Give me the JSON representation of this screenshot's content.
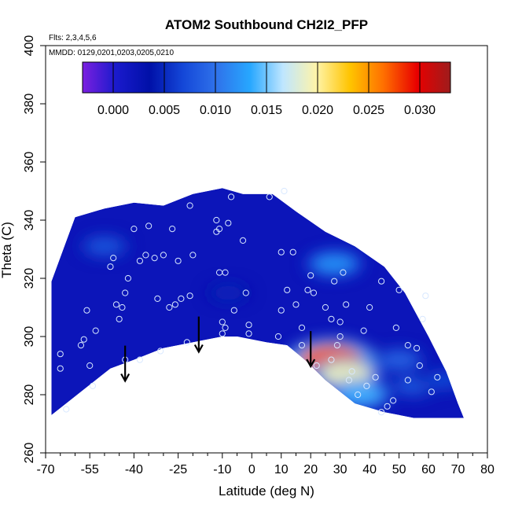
{
  "chart_data": {
    "type": "heatmap",
    "title": "ATOM2 Southbound CH2I2_PFP",
    "annotations": [
      "Flts: 2,3,4,5,6",
      "MMDD: 0129,0201,0203,0205,0210"
    ],
    "xlabel": "Latitude (deg N)",
    "ylabel": "Theta (C)",
    "xlim": [
      -70,
      80
    ],
    "ylim": [
      260,
      400
    ],
    "x_ticks": [
      -70,
      -55,
      -40,
      -25,
      -10,
      0,
      10,
      20,
      30,
      40,
      50,
      60,
      70,
      80
    ],
    "x_tick_labels": [
      "-70",
      "-55",
      "-40",
      "-25",
      "-10",
      "0",
      "10",
      "20",
      "30",
      "40",
      "50",
      "60",
      "70",
      "80"
    ],
    "y_ticks": [
      260,
      280,
      300,
      320,
      340,
      360,
      380,
      400
    ],
    "y_tick_labels": [
      "260",
      "280",
      "300",
      "320",
      "340",
      "360",
      "380",
      "400"
    ],
    "colorbar": {
      "range": [
        -0.003,
        0.033
      ],
      "ticks": [
        0.0,
        0.005,
        0.01,
        0.015,
        0.02,
        0.025,
        0.03
      ],
      "tick_labels": [
        "0.000",
        "0.005",
        "0.010",
        "0.015",
        "0.020",
        "0.025",
        "0.030"
      ],
      "colors": [
        "#7b1fe0",
        "#1a1acc",
        "#0010a8",
        "#1447d8",
        "#2f72ea",
        "#27a7ff",
        "#bfe6ff",
        "#fff4a8",
        "#ffc400",
        "#ff6f00",
        "#e80000",
        "#9e1c1c"
      ]
    },
    "upper_boundary": [
      [
        -68,
        319
      ],
      [
        -60,
        341
      ],
      [
        -50,
        344
      ],
      [
        -40,
        346
      ],
      [
        -30,
        345
      ],
      [
        -20,
        349
      ],
      [
        -10,
        351
      ],
      [
        -3,
        349
      ],
      [
        7,
        349
      ],
      [
        15,
        343
      ],
      [
        25,
        336
      ],
      [
        35,
        331
      ],
      [
        45,
        324
      ],
      [
        52,
        315
      ],
      [
        60,
        300
      ],
      [
        66,
        288
      ],
      [
        70,
        277
      ],
      [
        72,
        272
      ]
    ],
    "lower_boundary": [
      [
        -68,
        273
      ],
      [
        -58,
        281
      ],
      [
        -48,
        289
      ],
      [
        -40,
        292
      ],
      [
        -30,
        296
      ],
      [
        -20,
        298
      ],
      [
        -10,
        300
      ],
      [
        -5,
        300
      ],
      [
        5,
        298
      ],
      [
        12,
        297
      ],
      [
        18,
        292
      ],
      [
        25,
        285
      ],
      [
        35,
        277
      ],
      [
        45,
        274
      ],
      [
        55,
        272
      ],
      [
        72,
        272
      ]
    ],
    "hotspots": [
      {
        "lat": 27,
        "theta": 292,
        "value": 0.027
      },
      {
        "lat": 32,
        "theta": 287,
        "value": 0.019
      },
      {
        "lat": 37,
        "theta": 280,
        "value": 0.014
      },
      {
        "lat": 28,
        "theta": 325,
        "value": 0.012
      },
      {
        "lat": -50,
        "theta": 331,
        "value": 0.008
      },
      {
        "lat": 50,
        "theta": 292,
        "value": 0.009
      },
      {
        "lat": 55,
        "theta": 283,
        "value": 0.008
      },
      {
        "lat": 65,
        "theta": 285,
        "value": 0.007
      },
      {
        "lat": -8,
        "theta": 315,
        "value": 0.005
      }
    ],
    "background_value": 0.002,
    "samples": [
      [
        -65,
        294
      ],
      [
        -65,
        289
      ],
      [
        -63,
        275
      ],
      [
        -58,
        297
      ],
      [
        -57,
        299
      ],
      [
        -56,
        309
      ],
      [
        -55,
        290
      ],
      [
        -54,
        283
      ],
      [
        -53,
        302
      ],
      [
        -48,
        324
      ],
      [
        -47,
        327
      ],
      [
        -46,
        311
      ],
      [
        -45,
        306
      ],
      [
        -44,
        310
      ],
      [
        -43,
        292
      ],
      [
        -43,
        315
      ],
      [
        -42,
        320
      ],
      [
        -40,
        337
      ],
      [
        -38,
        326
      ],
      [
        -38,
        292
      ],
      [
        -36,
        328
      ],
      [
        -35,
        338
      ],
      [
        -33,
        327
      ],
      [
        -32,
        313
      ],
      [
        -31,
        295
      ],
      [
        -30,
        328
      ],
      [
        -28,
        310
      ],
      [
        -27,
        337
      ],
      [
        -26,
        311
      ],
      [
        -25,
        326
      ],
      [
        -24,
        313
      ],
      [
        -22,
        298
      ],
      [
        -21,
        314
      ],
      [
        -21,
        345
      ],
      [
        -20,
        328
      ],
      [
        -12,
        340
      ],
      [
        -12,
        336
      ],
      [
        -11,
        337
      ],
      [
        -11,
        322
      ],
      [
        -10,
        305
      ],
      [
        -10,
        301
      ],
      [
        -9,
        303
      ],
      [
        -9,
        322
      ],
      [
        -8,
        339
      ],
      [
        -7,
        348
      ],
      [
        -6,
        309
      ],
      [
        -3,
        333
      ],
      [
        -2,
        315
      ],
      [
        -1,
        304
      ],
      [
        -1,
        301
      ],
      [
        6,
        348
      ],
      [
        9,
        300
      ],
      [
        10,
        309
      ],
      [
        10,
        329
      ],
      [
        11,
        350
      ],
      [
        12,
        316
      ],
      [
        14,
        329
      ],
      [
        15,
        311
      ],
      [
        17,
        303
      ],
      [
        17,
        297
      ],
      [
        19,
        316
      ],
      [
        20,
        321
      ],
      [
        21,
        315
      ],
      [
        22,
        290
      ],
      [
        25,
        310
      ],
      [
        27,
        306
      ],
      [
        27,
        292
      ],
      [
        28,
        319
      ],
      [
        29,
        297
      ],
      [
        30,
        305
      ],
      [
        31,
        322
      ],
      [
        32,
        311
      ],
      [
        33,
        285
      ],
      [
        34,
        288
      ],
      [
        36,
        280
      ],
      [
        39,
        283
      ],
      [
        40,
        310
      ],
      [
        42,
        286
      ],
      [
        44,
        319
      ],
      [
        46,
        276
      ],
      [
        49,
        303
      ],
      [
        50,
        316
      ],
      [
        53,
        285
      ],
      [
        53,
        297
      ],
      [
        56,
        296
      ],
      [
        57,
        290
      ],
      [
        58,
        306
      ],
      [
        59,
        314
      ],
      [
        61,
        281
      ],
      [
        63,
        286
      ],
      [
        44,
        274
      ],
      [
        30,
        300
      ],
      [
        38,
        302
      ],
      [
        48,
        278
      ]
    ],
    "arrows": [
      {
        "lat": -43,
        "theta_from": 292,
        "theta_to": 285
      },
      {
        "lat": -18,
        "theta_from": 302,
        "theta_to": 295
      },
      {
        "lat": 20,
        "theta_from": 297,
        "theta_to": 290
      }
    ]
  }
}
